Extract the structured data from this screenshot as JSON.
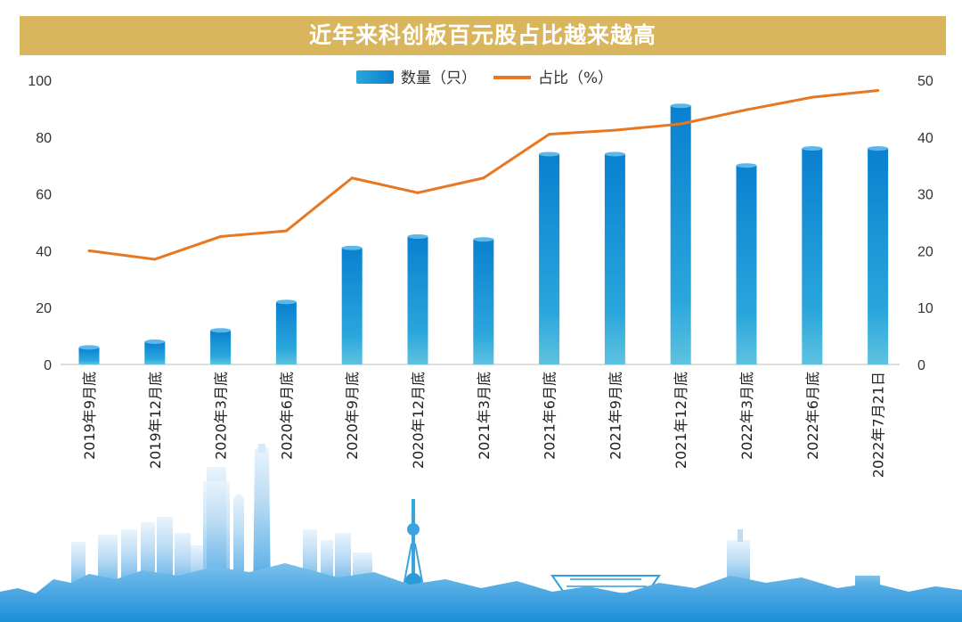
{
  "title": "近年来科创板百元股占比越来越高",
  "colors": {
    "title_bg": "#d9b65d",
    "line": "#e87722",
    "bar_top": "#0a80d0",
    "bar_bottom": "#5fc2e0",
    "skyline": "#1f97de"
  },
  "chart_data": {
    "type": "bar",
    "categories": [
      "2019年9月底",
      "2019年12月底",
      "2020年3月底",
      "2020年6月底",
      "2020年9月底",
      "2020年12月底",
      "2021年3月底",
      "2021年6月底",
      "2021年9月底",
      "2021年12月底",
      "2022年3月底",
      "2022年6月底",
      "2022年7月21日"
    ],
    "series": [
      {
        "name": "数量（只）",
        "kind": "bar",
        "axis": "left",
        "values": [
          6,
          8,
          12,
          22,
          41,
          45,
          44,
          74,
          74,
          91,
          70,
          76,
          76
        ]
      },
      {
        "name": "占比（%）",
        "kind": "line",
        "axis": "right",
        "values": [
          20,
          18.5,
          22.5,
          23.5,
          32.8,
          30.2,
          32.8,
          40.5,
          41.2,
          42.3,
          44.8,
          47,
          48.2
        ]
      }
    ],
    "ylim_left": [
      0,
      100
    ],
    "yticks_left": [
      0,
      20,
      40,
      60,
      80,
      100
    ],
    "ylim_right": [
      0,
      50
    ],
    "yticks_right": [
      0,
      10,
      20,
      30,
      40,
      50
    ],
    "legend": "top-center",
    "grid": false
  }
}
